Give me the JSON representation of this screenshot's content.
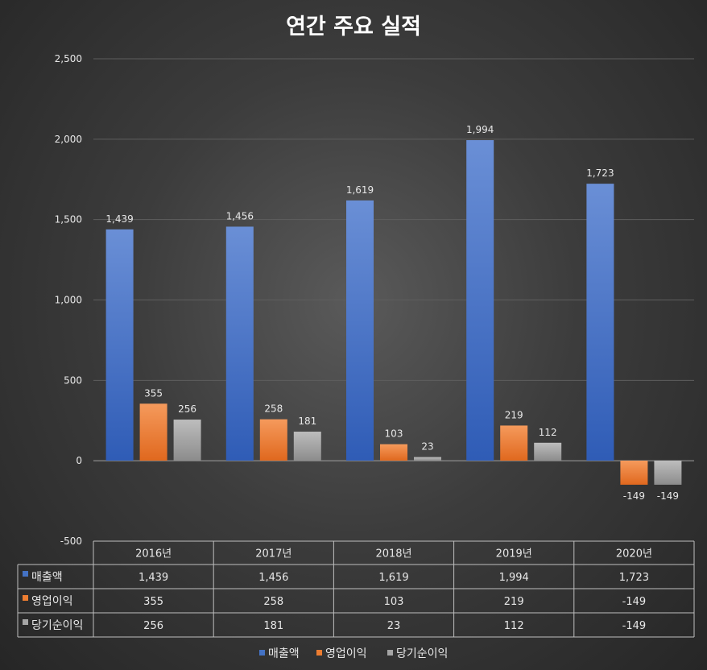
{
  "chart_data": {
    "type": "bar",
    "title": "연간 주요 실적",
    "categories": [
      "2016년",
      "2017년",
      "2018년",
      "2019년",
      "2020년"
    ],
    "series": [
      {
        "name": "매출액",
        "color": "#4472c4",
        "values": [
          1439,
          1456,
          1619,
          1994,
          1723
        ],
        "labels": [
          "1,439",
          "1,456",
          "1,619",
          "1,994",
          "1,723"
        ]
      },
      {
        "name": "영업이익",
        "color": "#ed7d31",
        "values": [
          355,
          258,
          103,
          219,
          -149
        ],
        "labels": [
          "355",
          "258",
          "103",
          "219",
          "-149"
        ]
      },
      {
        "name": "당기순이익",
        "color": "#a5a5a5",
        "values": [
          256,
          181,
          23,
          112,
          -149
        ],
        "labels": [
          "256",
          "181",
          "23",
          "112",
          "-149"
        ]
      }
    ],
    "ylim": [
      -500,
      2500
    ],
    "yticks": [
      -500,
      0,
      500,
      1000,
      1500,
      2000,
      2500
    ],
    "ytick_labels": [
      "-500",
      "0",
      "500",
      "1,000",
      "1,500",
      "2,000",
      "2,500"
    ],
    "grid": true,
    "data_table": true,
    "legend_position": "bottom"
  }
}
